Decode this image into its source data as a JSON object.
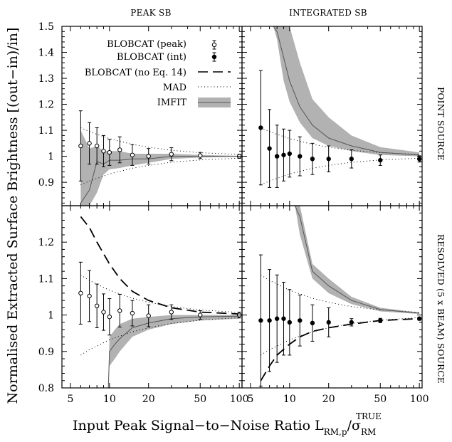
{
  "figure": {
    "column_titles": [
      "PEAK SB",
      "INTEGRATED SB"
    ],
    "row_titles": [
      "POINT SOURCE",
      "RESOLVED (5 x BEAM) SOURCE"
    ],
    "ylabel": "Normalised Extracted Surface Brightness [(out−in)/in]",
    "xlabel_main": "Input Peak Signal−to−Noise Ratio L",
    "xlabel_sup": "TRUE",
    "xlabel_sub": "RM,p",
    "xlabel_div": "/σ",
    "xlabel_div_sub": "RM",
    "legend": [
      "BLOBCAT (peak)",
      "BLOBCAT (int)",
      "BLOBCAT (no Eq. 14)",
      "MAD",
      "IMFIT"
    ]
  },
  "colors": {
    "band": "#b2b2b2",
    "line": "#555555",
    "ink": "#000000"
  },
  "chart_data": [
    {
      "type": "line",
      "panel": "point-peak",
      "title": "PEAK SB",
      "xscale": "log",
      "xlim": [
        4.3,
        105
      ],
      "ylim": [
        0.81,
        1.5
      ],
      "x_ticks": [
        5,
        10,
        20,
        50,
        100
      ],
      "y_ticks": [
        0.9,
        1,
        1.1,
        1.2,
        1.3,
        1.4,
        1.5
      ],
      "y_tick_labels": [
        "0.9",
        "1",
        "1.1",
        "1.2",
        "1.3",
        "1.4",
        "1.5"
      ],
      "series": [
        {
          "name": "BLOBCAT (peak)",
          "style": "open-points-errorbars",
          "x": [
            6,
            7,
            8,
            9,
            10,
            12,
            15,
            20,
            30,
            50,
            100
          ],
          "y": [
            1.04,
            1.05,
            1.04,
            1.02,
            1.015,
            1.025,
            1.005,
            1.0,
            1.008,
            1.003,
            1.0
          ],
          "err": [
            0.135,
            0.08,
            0.07,
            0.06,
            0.05,
            0.05,
            0.04,
            0.03,
            0.025,
            0.012,
            0.008
          ]
        },
        {
          "name": "MAD",
          "style": "dotted",
          "x": [
            6,
            7,
            8,
            10,
            12,
            15,
            20,
            30,
            50,
            100
          ],
          "y": [
            1.11,
            1.095,
            1.085,
            1.068,
            1.058,
            1.046,
            1.035,
            1.023,
            1.014,
            1.007
          ]
        },
        {
          "name": "MAD",
          "style": "dotted",
          "x": [
            6,
            7,
            8,
            10,
            12,
            15,
            20,
            30,
            50,
            100
          ],
          "y": [
            0.89,
            0.905,
            0.915,
            0.932,
            0.942,
            0.954,
            0.965,
            0.977,
            0.986,
            0.993
          ]
        },
        {
          "name": "IMFIT",
          "style": "band",
          "x": [
            6,
            7,
            8,
            9,
            10,
            12,
            15,
            20,
            30,
            50,
            100
          ],
          "lower": [
            0.81,
            0.81,
            0.86,
            0.93,
            0.95,
            0.955,
            0.965,
            0.975,
            0.99,
            0.995,
            0.998
          ],
          "upper": [
            1.1,
            1.03,
            1.04,
            1.02,
            1.02,
            1.02,
            1.01,
            1.01,
            1.01,
            1.005,
            1.002
          ],
          "center": [
            0.82,
            0.87,
            0.98,
            0.97,
            0.985,
            0.985,
            0.99,
            0.99,
            1.0,
            1.0,
            1.0
          ]
        }
      ]
    },
    {
      "type": "line",
      "panel": "point-int",
      "title": "INTEGRATED SB",
      "xscale": "log",
      "xlim": [
        4.3,
        105
      ],
      "ylim": [
        0.81,
        1.5
      ],
      "x_ticks": [
        5,
        10,
        20,
        50,
        100
      ],
      "y_ticks": [
        0.9,
        1,
        1.1,
        1.2,
        1.3,
        1.4,
        1.5
      ],
      "series": [
        {
          "name": "BLOBCAT (int)",
          "style": "filled-points-errorbars",
          "x": [
            6,
            7,
            8,
            9,
            10,
            12,
            15,
            20,
            30,
            50,
            100
          ],
          "y": [
            1.11,
            1.03,
            1.0,
            1.005,
            1.01,
            1.0,
            0.99,
            0.99,
            0.99,
            0.985,
            0.99
          ],
          "err": [
            0.22,
            0.15,
            0.12,
            0.1,
            0.09,
            0.075,
            0.06,
            0.05,
            0.035,
            0.02,
            0.012
          ]
        },
        {
          "name": "MAD",
          "style": "dotted",
          "x": [
            6,
            7,
            8,
            10,
            12,
            15,
            20,
            30,
            50,
            100
          ],
          "y": [
            1.11,
            1.095,
            1.085,
            1.068,
            1.058,
            1.046,
            1.035,
            1.023,
            1.014,
            1.007
          ]
        },
        {
          "name": "MAD",
          "style": "dotted",
          "x": [
            6,
            7,
            8,
            10,
            12,
            15,
            20,
            30,
            50,
            100
          ],
          "y": [
            0.89,
            0.905,
            0.915,
            0.932,
            0.942,
            0.954,
            0.965,
            0.977,
            0.986,
            0.993
          ]
        },
        {
          "name": "IMFIT",
          "style": "band",
          "x": [
            7.5,
            8,
            9,
            10,
            12,
            15,
            20,
            30,
            50,
            100
          ],
          "lower": [
            1.5,
            1.45,
            1.29,
            1.21,
            1.13,
            1.07,
            1.04,
            1.02,
            1.005,
            1.0
          ],
          "upper": [
            1.5,
            1.5,
            1.5,
            1.5,
            1.36,
            1.22,
            1.15,
            1.08,
            1.035,
            1.015
          ],
          "center": [
            1.5,
            1.48,
            1.38,
            1.29,
            1.19,
            1.12,
            1.07,
            1.04,
            1.015,
            1.005
          ]
        }
      ]
    },
    {
      "type": "line",
      "panel": "resolved-peak",
      "xscale": "log",
      "xlim": [
        4.3,
        105
      ],
      "ylim": [
        0.8,
        1.3
      ],
      "x_ticks": [
        5,
        10,
        20,
        50,
        100
      ],
      "x_tick_labels": [
        "5",
        "10",
        "20",
        "50",
        "100"
      ],
      "y_ticks": [
        0.8,
        0.9,
        1,
        1.1,
        1.2
      ],
      "y_tick_labels": [
        "0.8",
        "0.9",
        "1",
        "1.1",
        "1.2"
      ],
      "series": [
        {
          "name": "BLOBCAT (peak)",
          "style": "open-points-errorbars",
          "x": [
            6,
            7,
            8,
            9,
            10,
            12,
            15,
            20,
            30,
            50,
            100
          ],
          "y": [
            1.06,
            1.052,
            1.025,
            1.008,
            0.995,
            1.012,
            1.005,
            0.998,
            1.008,
            1.0,
            1.0
          ],
          "err": [
            0.085,
            0.07,
            0.06,
            0.05,
            0.05,
            0.045,
            0.035,
            0.03,
            0.02,
            0.012,
            0.008
          ]
        },
        {
          "name": "BLOBCAT (no Eq. 14)",
          "style": "dashed",
          "x": [
            6,
            7,
            8,
            10,
            12,
            15,
            20,
            30,
            50,
            100
          ],
          "y": [
            1.27,
            1.24,
            1.2,
            1.14,
            1.1,
            1.065,
            1.04,
            1.02,
            1.008,
            1.003
          ]
        },
        {
          "name": "MAD",
          "style": "dotted",
          "x": [
            6,
            7,
            8,
            10,
            12,
            15,
            20,
            30,
            50,
            100
          ],
          "y": [
            1.11,
            1.095,
            1.085,
            1.068,
            1.058,
            1.046,
            1.035,
            1.023,
            1.014,
            1.007
          ]
        },
        {
          "name": "MAD",
          "style": "dotted",
          "x": [
            6,
            7,
            8,
            10,
            12,
            15,
            20,
            30,
            50,
            100
          ],
          "y": [
            0.89,
            0.905,
            0.915,
            0.932,
            0.942,
            0.954,
            0.965,
            0.977,
            0.986,
            0.993
          ]
        },
        {
          "name": "IMFIT",
          "style": "band",
          "x": [
            9.8,
            10,
            11,
            12,
            15,
            20,
            30,
            50,
            100
          ],
          "lower": [
            0.8,
            0.86,
            0.88,
            0.9,
            0.94,
            0.96,
            0.975,
            0.985,
            0.99
          ],
          "upper": [
            0.8,
            0.94,
            0.96,
            0.975,
            0.99,
            0.995,
            1.0,
            1.0,
            1.0
          ],
          "center": [
            0.8,
            0.9,
            0.92,
            0.935,
            0.965,
            0.978,
            0.99,
            0.995,
            0.997
          ]
        }
      ]
    },
    {
      "type": "line",
      "panel": "resolved-int",
      "xscale": "log",
      "xlim": [
        4.3,
        105
      ],
      "ylim": [
        0.8,
        1.3
      ],
      "x_ticks": [
        5,
        10,
        20,
        50,
        100
      ],
      "x_tick_labels": [
        "5",
        "10",
        "20",
        "50",
        "100"
      ],
      "y_ticks": [
        0.8,
        0.9,
        1,
        1.1,
        1.2
      ],
      "series": [
        {
          "name": "BLOBCAT (int)",
          "style": "filled-points-errorbars",
          "x": [
            6,
            7,
            8,
            9,
            10,
            12,
            15,
            20,
            30,
            50,
            100
          ],
          "y": [
            0.985,
            0.985,
            0.99,
            0.99,
            0.98,
            0.985,
            0.978,
            0.98,
            0.98,
            0.985,
            0.99
          ],
          "err": [
            0.18,
            0.14,
            0.12,
            0.1,
            0.09,
            0.07,
            0.05,
            0.04,
            0.01,
            0.006,
            0.004
          ]
        },
        {
          "name": "BLOBCAT (no Eq. 14)",
          "style": "dashed",
          "x": [
            6,
            7,
            8,
            10,
            12,
            15,
            20,
            30,
            50,
            100
          ],
          "y": [
            0.82,
            0.86,
            0.89,
            0.92,
            0.94,
            0.955,
            0.965,
            0.975,
            0.985,
            0.99
          ]
        },
        {
          "name": "MAD",
          "style": "dotted",
          "x": [
            6,
            7,
            8,
            10,
            12,
            15,
            20,
            30,
            50,
            100
          ],
          "y": [
            1.11,
            1.095,
            1.085,
            1.068,
            1.058,
            1.046,
            1.035,
            1.023,
            1.014,
            1.007
          ]
        },
        {
          "name": "MAD",
          "style": "dotted",
          "x": [
            6,
            7,
            8,
            10,
            12,
            15,
            20,
            30,
            50,
            100
          ],
          "y": [
            0.89,
            0.905,
            0.915,
            0.932,
            0.942,
            0.954,
            0.965,
            0.977,
            0.986,
            0.993
          ]
        },
        {
          "name": "IMFIT",
          "style": "band",
          "x": [
            11,
            12,
            15,
            20,
            30,
            50,
            100
          ],
          "lower": [
            1.3,
            1.22,
            1.1,
            1.06,
            1.03,
            1.01,
            1.003
          ],
          "upper": [
            1.3,
            1.3,
            1.14,
            1.1,
            1.05,
            1.02,
            1.007
          ],
          "center": [
            1.3,
            1.27,
            1.12,
            1.08,
            1.04,
            1.015,
            1.005
          ]
        }
      ]
    }
  ]
}
